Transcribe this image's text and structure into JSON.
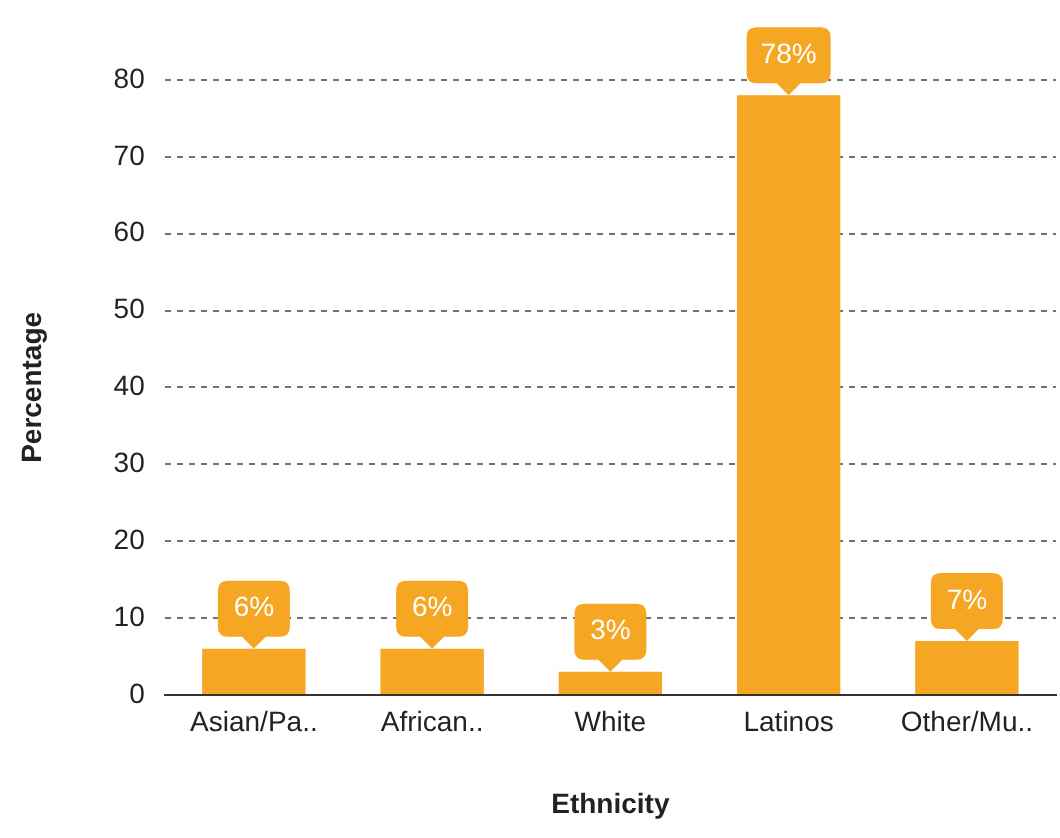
{
  "chart_data": {
    "type": "bar",
    "xlabel": "Ethnicity",
    "ylabel": "Percentage",
    "categories": [
      "Asian/Pa..",
      "African..",
      "White",
      "Latinos",
      "Other/Mu.."
    ],
    "values": [
      6,
      6,
      3,
      78,
      7
    ],
    "value_labels": [
      "6%",
      "6%",
      "3%",
      "78%",
      "7%"
    ],
    "color": "#f5a623",
    "ylim": [
      0,
      80
    ],
    "yticks": [
      0,
      10,
      20,
      30,
      40,
      50,
      60,
      70,
      80
    ],
    "grid": "y",
    "legend": false
  }
}
